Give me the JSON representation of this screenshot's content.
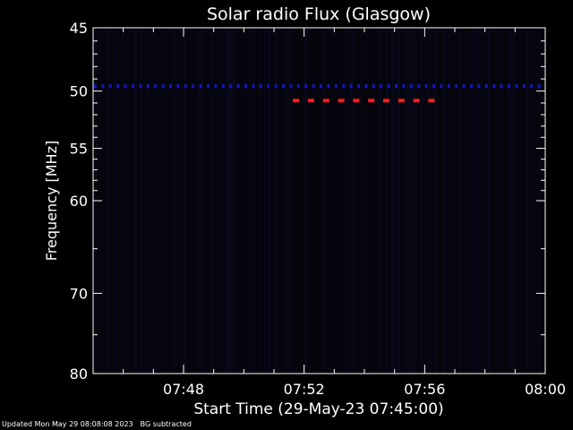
{
  "chart_data": {
    "type": "heatmap",
    "title": "Solar radio Flux (Glasgow)",
    "xlabel": "Start Time (29-May-23 07:45:00)",
    "ylabel": "Frequency [MHz]",
    "x_ticks": [
      "07:48",
      "07:52",
      "07:56",
      "08:00"
    ],
    "x_tick_minutes": [
      3,
      7,
      11,
      15
    ],
    "xlim_minutes": [
      0,
      15
    ],
    "y_ticks": [
      45,
      50,
      55,
      60,
      70,
      80
    ],
    "ylim": [
      45,
      80
    ],
    "y_scale": "log",
    "grid": false,
    "features": [
      {
        "kind": "persistent-band",
        "frequency_mhz": 49.6,
        "x_minutes": [
          0,
          15
        ],
        "color": "#1515c8"
      },
      {
        "kind": "burst-band",
        "frequency_mhz": 50.8,
        "x_minutes": [
          6.6,
          11.6
        ],
        "color": "#ff1a1a"
      }
    ],
    "colors": {
      "background": "#000000",
      "low": "#050516",
      "mid": "#1515c8",
      "high": "#ff1a1a"
    }
  },
  "footer": {
    "updated": "Updated Mon May 29 08:08:08 2023",
    "note": "BG subtracted"
  }
}
